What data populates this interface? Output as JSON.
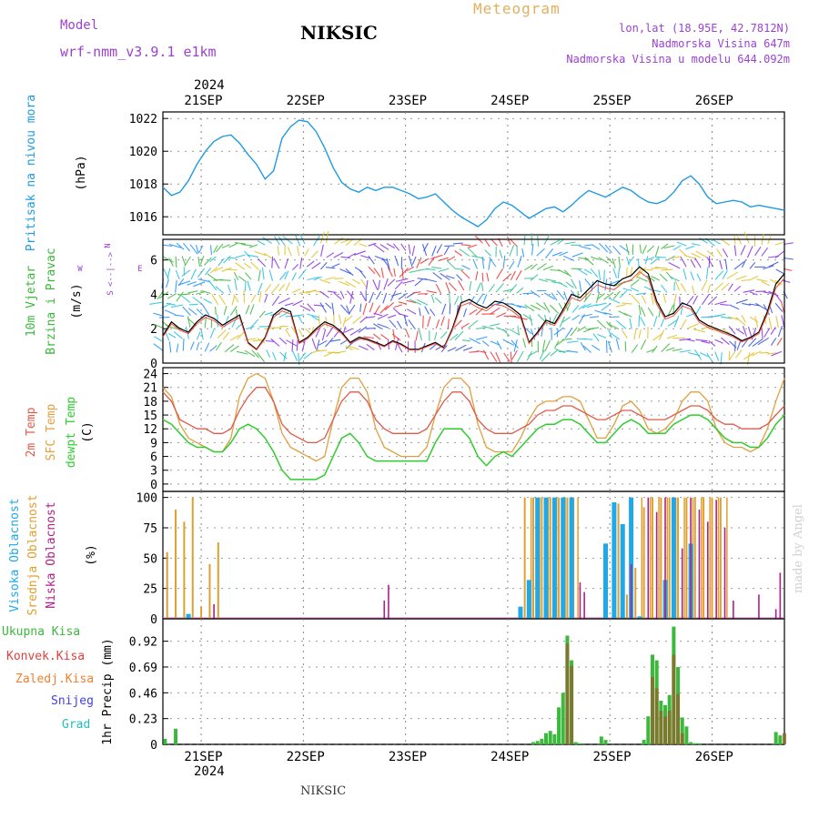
{
  "header": {
    "model_label": "Model",
    "model_name": "wrf-nmm_v3.9.1 e1km",
    "station": "NIKSIC",
    "meteogram": "Meteogram",
    "lonlat": "lon,lat (18.95E, 42.7812N)",
    "elevation": "Nadmorska Visina 647m",
    "elevation_model": "Nadmorska Visina u modelu 644.092m",
    "year_top": "2024",
    "year_bottom": "2024",
    "footer_station": "NIKSIC",
    "credit": "made by Angel"
  },
  "days": [
    "21SEP",
    "22SEP",
    "23SEP",
    "24SEP",
    "25SEP",
    "26SEP"
  ],
  "colors": {
    "pressure": "#1e9be0",
    "t2m": "#e05a4a",
    "sfc": "#e0a040",
    "dewpt": "#2ecc2e",
    "high": "#20a8e8",
    "mid": "#e0a030",
    "low": "#b0208a",
    "total": "#3cb83c",
    "conv": "#e04040",
    "frozen": "#f08030",
    "snow": "#4040e0",
    "grad": "#20c0c0",
    "purple": "#9b42d0"
  },
  "chart_data": [
    {
      "type": "line",
      "ylabel_main": "Pritisak na nivou mora",
      "ylabel_unit": "(hPa)",
      "ylim": [
        1014.9,
        1022.4
      ],
      "yticks": [
        "1016",
        "1018",
        "1020",
        "1022"
      ],
      "series": [
        {
          "x": [
            0,
            2,
            4,
            6,
            8,
            10,
            12,
            14,
            16,
            18,
            20,
            22,
            24,
            26,
            28,
            30,
            32,
            34,
            36,
            38,
            40,
            42,
            44,
            46,
            48,
            50,
            52,
            54,
            56,
            58,
            60,
            62,
            64,
            66,
            68,
            70,
            72,
            74,
            76,
            78,
            80,
            82,
            84,
            86,
            88,
            90,
            92,
            94,
            96,
            98,
            100,
            102,
            104,
            106,
            108,
            110,
            112,
            114,
            116,
            118,
            120,
            122,
            124,
            126,
            128,
            130,
            132,
            134,
            136,
            138,
            140,
            142,
            144,
            146
          ],
          "y": [
            1017.8,
            1017.3,
            1017.5,
            1018.2,
            1019.2,
            1020.0,
            1020.6,
            1020.9,
            1021.0,
            1020.5,
            1019.8,
            1019.2,
            1018.3,
            1018.8,
            1020.8,
            1021.5,
            1021.9,
            1021.8,
            1021.2,
            1020.2,
            1019.0,
            1018.1,
            1017.7,
            1017.5,
            1017.8,
            1017.6,
            1017.8,
            1017.8,
            1017.6,
            1017.4,
            1017.1,
            1017.2,
            1017.4,
            1016.9,
            1016.4,
            1016.0,
            1015.7,
            1015.4,
            1015.8,
            1016.5,
            1016.9,
            1016.7,
            1016.3,
            1015.9,
            1016.2,
            1016.5,
            1016.6,
            1016.3,
            1016.7,
            1017.2,
            1017.6,
            1017.4,
            1017.2,
            1017.5,
            1017.8,
            1017.6,
            1017.2,
            1016.9,
            1016.8,
            1017.0,
            1017.5,
            1018.2,
            1018.5,
            1018.0,
            1017.2,
            1016.8,
            1016.9,
            1017.0,
            1016.9,
            1016.6,
            1016.7,
            1016.6,
            1016.5,
            1016.4
          ]
        }
      ]
    },
    {
      "type": "line",
      "title_lines": [
        "10m Vjetar",
        "Brzina i Pravac"
      ],
      "ylabel_unit": "(m/s)",
      "compass": {
        "n": "N",
        "s": "S",
        "w": "W",
        "e": "E"
      },
      "ylim": [
        0,
        7.2
      ],
      "yticks": [
        "0",
        "2",
        "4",
        "6"
      ],
      "series": [
        {
          "x": [
            0,
            2,
            4,
            6,
            8,
            10,
            12,
            14,
            16,
            18,
            20,
            22,
            24,
            26,
            28,
            30,
            32,
            34,
            36,
            38,
            40,
            42,
            44,
            46,
            48,
            50,
            52,
            54,
            56,
            58,
            60,
            62,
            64,
            66,
            68,
            70,
            72,
            74,
            76,
            78,
            80,
            82,
            84,
            86,
            88,
            90,
            92,
            94,
            96,
            98,
            100,
            102,
            104,
            106,
            108,
            110,
            112,
            114,
            116,
            118,
            120,
            122,
            124,
            126,
            128,
            130,
            132,
            134,
            136,
            138,
            140,
            142,
            144,
            146
          ],
          "y": [
            1.6,
            2.4,
            2.0,
            1.8,
            2.4,
            2.8,
            2.6,
            2.2,
            2.5,
            2.8,
            1.2,
            0.8,
            1.5,
            2.8,
            3.2,
            3.0,
            1.2,
            1.5,
            2.0,
            2.4,
            2.2,
            1.8,
            1.2,
            1.5,
            1.4,
            1.2,
            1.0,
            1.3,
            1.1,
            0.8,
            0.8,
            1.0,
            1.2,
            0.9,
            2.0,
            3.5,
            3.7,
            3.4,
            3.2,
            3.6,
            3.5,
            3.2,
            2.8,
            1.2,
            1.8,
            2.5,
            2.3,
            3.1,
            4.0,
            3.8,
            4.3,
            4.8,
            4.6,
            4.5,
            4.9,
            5.1,
            5.6,
            5.2,
            3.6,
            2.7,
            2.9,
            3.5,
            3.3,
            2.5,
            2.2,
            2.0,
            1.8,
            1.6,
            1.3,
            1.5,
            1.8,
            3.0,
            4.6,
            5.2
          ]
        }
      ]
    },
    {
      "type": "line",
      "title_lines": [
        "2m Temp",
        "SFC Temp",
        "dewpt Temp"
      ],
      "ylabel_unit": "(C)",
      "ylim": [
        -1.6,
        25.3
      ],
      "yticks": [
        "0",
        "3",
        "6",
        "9",
        "12",
        "15",
        "18",
        "21",
        "24"
      ],
      "series": [
        {
          "x": [
            0,
            2,
            4,
            6,
            8,
            10,
            12,
            14,
            16,
            18,
            20,
            22,
            24,
            26,
            28,
            30,
            32,
            34,
            36,
            38,
            40,
            42,
            44,
            46,
            48,
            50,
            52,
            54,
            56,
            58,
            60,
            62,
            64,
            66,
            68,
            70,
            72,
            74,
            76,
            78,
            80,
            82,
            84,
            86,
            88,
            90,
            92,
            94,
            96,
            98,
            100,
            102,
            104,
            106,
            108,
            110,
            112,
            114,
            116,
            118,
            120,
            122,
            124,
            126,
            128,
            130,
            132,
            134,
            136,
            138,
            140,
            142,
            144,
            146
          ],
          "y": [
            20,
            18,
            14,
            13,
            12,
            12,
            11,
            11,
            12,
            16,
            19,
            21,
            21,
            18,
            13,
            11,
            10,
            9,
            9,
            10,
            14,
            18,
            20,
            20,
            18,
            14,
            12,
            11,
            11,
            11,
            11,
            12,
            15,
            18,
            20,
            20,
            18,
            14,
            12,
            11,
            11,
            11,
            12,
            13,
            15,
            16,
            16,
            17,
            17,
            16,
            15,
            14,
            14,
            15,
            16,
            16,
            15,
            14,
            14,
            14,
            15,
            16,
            17,
            17,
            16,
            14,
            13,
            13,
            12,
            12,
            12,
            13,
            15,
            17
          ]
        },
        {
          "x": [
            0,
            2,
            4,
            6,
            8,
            10,
            12,
            14,
            16,
            18,
            20,
            22,
            24,
            26,
            28,
            30,
            32,
            34,
            36,
            38,
            40,
            42,
            44,
            46,
            48,
            50,
            52,
            54,
            56,
            58,
            60,
            62,
            64,
            66,
            68,
            70,
            72,
            74,
            76,
            78,
            80,
            82,
            84,
            86,
            88,
            90,
            92,
            94,
            96,
            98,
            100,
            102,
            104,
            106,
            108,
            110,
            112,
            114,
            116,
            118,
            120,
            122,
            124,
            126,
            128,
            130,
            132,
            134,
            136,
            138,
            140,
            142,
            144,
            146
          ],
          "y": [
            21,
            19,
            13,
            10,
            9,
            8,
            7,
            7,
            10,
            19,
            23,
            24,
            23,
            18,
            11,
            8,
            7,
            6,
            5,
            6,
            14,
            21,
            23,
            23,
            20,
            12,
            8,
            7,
            6,
            6,
            6,
            8,
            15,
            21,
            23,
            23,
            21,
            13,
            8,
            7,
            7,
            7,
            10,
            14,
            17,
            18,
            18,
            19,
            19,
            18,
            14,
            10,
            10,
            13,
            17,
            18,
            16,
            12,
            11,
            12,
            14,
            18,
            20,
            20,
            18,
            12,
            9,
            8,
            8,
            7,
            8,
            12,
            18,
            23
          ]
        },
        {
          "x": [
            0,
            2,
            4,
            6,
            8,
            10,
            12,
            14,
            16,
            18,
            20,
            22,
            24,
            26,
            28,
            30,
            32,
            34,
            36,
            38,
            40,
            42,
            44,
            46,
            48,
            50,
            52,
            54,
            56,
            58,
            60,
            62,
            64,
            66,
            68,
            70,
            72,
            74,
            76,
            78,
            80,
            82,
            84,
            86,
            88,
            90,
            92,
            94,
            96,
            98,
            100,
            102,
            104,
            106,
            108,
            110,
            112,
            114,
            116,
            118,
            120,
            122,
            124,
            126,
            128,
            130,
            132,
            134,
            136,
            138,
            140,
            142,
            144,
            146
          ],
          "y": [
            14,
            13,
            11,
            9,
            8,
            8,
            7,
            7,
            9,
            12,
            13,
            12,
            10,
            7,
            3,
            1,
            1,
            1,
            1,
            2,
            6,
            10,
            11,
            9,
            6,
            5,
            5,
            5,
            5,
            5,
            5,
            5,
            9,
            12,
            12,
            12,
            10,
            6,
            4,
            6,
            7,
            6,
            8,
            10,
            12,
            13,
            13,
            14,
            14,
            13,
            11,
            9,
            9,
            11,
            13,
            14,
            13,
            11,
            11,
            11,
            13,
            14,
            15,
            15,
            14,
            12,
            10,
            9,
            9,
            8,
            8,
            10,
            13,
            15
          ]
        }
      ]
    },
    {
      "type": "bar",
      "title_lines": [
        "Visoka Oblacnost",
        "Srednja Oblacnost",
        "Niska Oblacnost"
      ],
      "ylabel_unit": "(%)",
      "ylim": [
        0,
        105
      ],
      "yticks": [
        "0",
        "25",
        "50",
        "75",
        "100"
      ],
      "series": [
        {
          "name": "Visoka Oblacnost",
          "x": [
            6,
            84,
            86,
            88,
            90,
            92,
            94,
            96,
            104,
            106,
            108,
            110,
            112,
            118,
            120,
            124
          ],
          "values": [
            4,
            10,
            32,
            100,
            100,
            100,
            100,
            100,
            62,
            96,
            78,
            100,
            2,
            32,
            100,
            62
          ]
        },
        {
          "name": "Srednja Oblacnost",
          "x": [
            1,
            3,
            5,
            7,
            9,
            11,
            13,
            85,
            87,
            89,
            91,
            93,
            95,
            107,
            109,
            111,
            113,
            115,
            117,
            119,
            121,
            123,
            125,
            127,
            129,
            131
          ],
          "values": [
            55,
            90,
            80,
            100,
            10,
            45,
            63,
            100,
            100,
            100,
            100,
            100,
            100,
            95,
            20,
            42,
            92,
            100,
            100,
            100,
            100,
            100,
            100,
            100,
            100,
            100
          ],
          "stripes": [
            86.5,
            88.5,
            90.5,
            92.5,
            94.5,
            96.5,
            97.5,
            112.5,
            114.5,
            116.5,
            118.5,
            120.5,
            122.5,
            124.5,
            126.5,
            128.5,
            130.5,
            132.5
          ]
        },
        {
          "name": "Niska Oblacnost",
          "x": [
            12,
            52,
            53,
            98,
            99,
            110,
            114,
            116,
            118,
            122,
            124,
            126,
            128,
            130,
            132,
            134,
            140,
            144,
            145
          ],
          "values": [
            12,
            15,
            28,
            30,
            22,
            45,
            100,
            88,
            100,
            58,
            100,
            90,
            80,
            98,
            75,
            15,
            20,
            8,
            38
          ]
        }
      ]
    },
    {
      "type": "bar",
      "legend": [
        "Ukupna Kisa",
        "Konvek.Kisa",
        "Zaledj.Kisa",
        "Snijeg",
        "Grad"
      ],
      "ylabel_main": "1hr Precip",
      "ylabel_unit": "(mm)",
      "ylim": [
        0,
        1.12
      ],
      "yticks": [
        "0",
        "0.23",
        "0.46",
        "0.69",
        "0.92"
      ],
      "series": [
        {
          "name": "Ukupna Kisa",
          "x": [
            0.5,
            3,
            87,
            88,
            89,
            90,
            91,
            92,
            93,
            94,
            95,
            96,
            97,
            98,
            103,
            104,
            113,
            114,
            115,
            116,
            117,
            118,
            119,
            120,
            121,
            122,
            123,
            124,
            125,
            126,
            144,
            145
          ],
          "values": [
            0.05,
            0.14,
            0.02,
            0.03,
            0.05,
            0.1,
            0.12,
            0.09,
            0.33,
            0.46,
            0.97,
            0.75,
            0.02,
            0.01,
            0.07,
            0.04,
            0.04,
            0.25,
            0.8,
            0.75,
            0.39,
            0.35,
            0.44,
            1.05,
            0.69,
            0.24,
            0.16,
            0.02,
            0.01,
            0.01,
            0.11,
            0.08
          ]
        },
        {
          "name": "Konvek.Kisa",
          "x": [
            95,
            96,
            115,
            116,
            117,
            118,
            119,
            120,
            121,
            122,
            146
          ],
          "values": [
            0.9,
            0.7,
            0.6,
            0.5,
            0.3,
            0.25,
            0.3,
            0.8,
            0.45,
            0.1,
            0.1
          ]
        }
      ]
    }
  ]
}
